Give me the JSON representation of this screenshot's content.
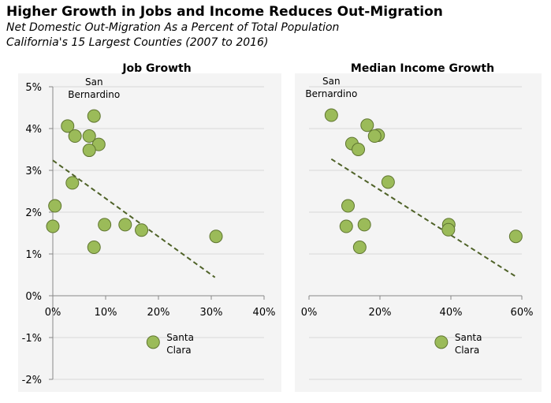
{
  "title": "Higher Growth in Jobs and Income Reduces Out-Migration",
  "subtitle1": "Net Domestic Out-Migration As a Percent of Total Population",
  "subtitle2": "California's 15 Largest Counties (2007 to 2016)",
  "colors": {
    "marker_fill": "#9BBB59",
    "marker_stroke": "#5F7530",
    "trend": "#4F6228",
    "panel_bg": "#F4F4F4",
    "grid": "#D9D9D9"
  },
  "chart_data": [
    {
      "type": "scatter",
      "title": "Job Growth",
      "xlabel": "",
      "ylabel": "",
      "xlim": [
        0,
        40
      ],
      "ylim": [
        -2,
        5
      ],
      "x_ticks": [
        "0%",
        "10%",
        "20%",
        "30%",
        "40%"
      ],
      "x_tick_values": [
        0,
        10,
        20,
        30,
        40
      ],
      "y_ticks": [
        "5%",
        "4%",
        "3%",
        "2%",
        "1%",
        "0%",
        "-1%",
        "-2%"
      ],
      "y_tick_values": [
        5,
        4,
        3,
        2,
        1,
        0,
        -1,
        -2
      ],
      "grid": true,
      "points": [
        {
          "x": 7.8,
          "y": 4.3,
          "label": "San Bernardino"
        },
        {
          "x": 2.8,
          "y": 4.06
        },
        {
          "x": 4.2,
          "y": 3.82
        },
        {
          "x": 6.9,
          "y": 3.82
        },
        {
          "x": 8.7,
          "y": 3.62
        },
        {
          "x": 6.9,
          "y": 3.48
        },
        {
          "x": 3.7,
          "y": 2.7
        },
        {
          "x": 0.4,
          "y": 2.15
        },
        {
          "x": 0.0,
          "y": 1.66
        },
        {
          "x": 9.8,
          "y": 1.7
        },
        {
          "x": 13.7,
          "y": 1.7
        },
        {
          "x": 16.8,
          "y": 1.57
        },
        {
          "x": 7.8,
          "y": 1.16
        },
        {
          "x": 30.9,
          "y": 1.42
        },
        {
          "x": 19.0,
          "y": -1.11,
          "label": "Santa Clara"
        }
      ],
      "trendline": {
        "x": [
          0,
          30.7
        ],
        "y": [
          3.24,
          0.44
        ]
      },
      "annotations": [
        {
          "lines": [
            "San",
            "Bernardino"
          ],
          "x": 7.8,
          "y": 4.3,
          "pos": "above"
        },
        {
          "lines": [
            "Santa",
            "Clara"
          ],
          "x": 19.0,
          "y": -1.11,
          "pos": "right"
        }
      ]
    },
    {
      "type": "scatter",
      "title": "Median Income Growth",
      "xlabel": "",
      "ylabel": "",
      "xlim": [
        0,
        60
      ],
      "ylim": [
        -2,
        5
      ],
      "x_ticks": [
        "0%",
        "20%",
        "40%",
        "60%"
      ],
      "x_tick_values": [
        0,
        20,
        40,
        60
      ],
      "y_ticks": [],
      "y_tick_values": [
        5,
        4,
        3,
        2,
        1,
        0,
        -1,
        -2
      ],
      "grid": true,
      "points": [
        {
          "x": 6.3,
          "y": 4.32,
          "label": "San Bernardino"
        },
        {
          "x": 16.4,
          "y": 4.08
        },
        {
          "x": 19.5,
          "y": 3.84
        },
        {
          "x": 18.5,
          "y": 3.82
        },
        {
          "x": 12.1,
          "y": 3.64
        },
        {
          "x": 13.9,
          "y": 3.5
        },
        {
          "x": 22.3,
          "y": 2.72
        },
        {
          "x": 11.0,
          "y": 2.15
        },
        {
          "x": 10.5,
          "y": 1.66
        },
        {
          "x": 15.6,
          "y": 1.7
        },
        {
          "x": 14.3,
          "y": 1.16
        },
        {
          "x": 39.4,
          "y": 1.7
        },
        {
          "x": 39.3,
          "y": 1.58
        },
        {
          "x": 58.3,
          "y": 1.42
        },
        {
          "x": 37.3,
          "y": -1.11,
          "label": "Santa Clara"
        }
      ],
      "trendline": {
        "x": [
          6.3,
          58.3
        ],
        "y": [
          3.27,
          0.46
        ]
      },
      "annotations": [
        {
          "lines": [
            "San",
            "Bernardino"
          ],
          "x": 6.3,
          "y": 4.32,
          "pos": "above"
        },
        {
          "lines": [
            "Santa",
            "Clara"
          ],
          "x": 37.3,
          "y": -1.11,
          "pos": "right"
        }
      ]
    }
  ]
}
